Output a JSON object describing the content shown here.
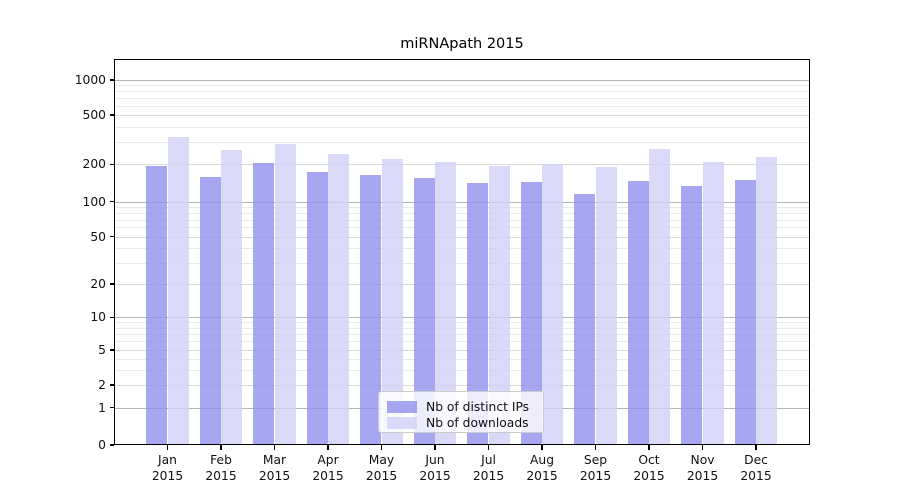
{
  "title": "miRNApath 2015",
  "chart_data": {
    "type": "bar",
    "title": "miRNApath 2015",
    "categories": [
      "Jan",
      "Feb",
      "Mar",
      "Apr",
      "May",
      "Jun",
      "Jul",
      "Aug",
      "Sep",
      "Oct",
      "Nov",
      "Dec"
    ],
    "year": "2015",
    "series": [
      {
        "name": "Nb of distinct IPs",
        "color_hex": "#a6a6f1",
        "color": "rgba(144,144,238,0.8)",
        "values": [
          193,
          157,
          205,
          175,
          163,
          155,
          142,
          144,
          115,
          148,
          133,
          150
        ]
      },
      {
        "name": "Nb of downloads",
        "color_hex": "#dadaf8",
        "color": "rgba(209,209,246,0.8)",
        "values": [
          335,
          260,
          290,
          240,
          220,
          210,
          195,
          200,
          190,
          267,
          207,
          230
        ]
      }
    ],
    "y_ticks": [
      0,
      1,
      2,
      5,
      10,
      20,
      50,
      100,
      200,
      500,
      1000
    ],
    "y_scale": "symlog",
    "ylim": [
      0,
      1500
    ],
    "xlabel": "",
    "ylabel": "",
    "grid": "both",
    "legend_position": "lower-center"
  },
  "colors": {
    "grid_major": "#b5b5b5",
    "grid_mid": "#d9d9d9",
    "grid_minor": "#eaeaea",
    "axis": "#000000",
    "text": "#111111",
    "legend_border": "#cccccc",
    "legend_bg": "rgba(255,255,255,0.8)"
  }
}
